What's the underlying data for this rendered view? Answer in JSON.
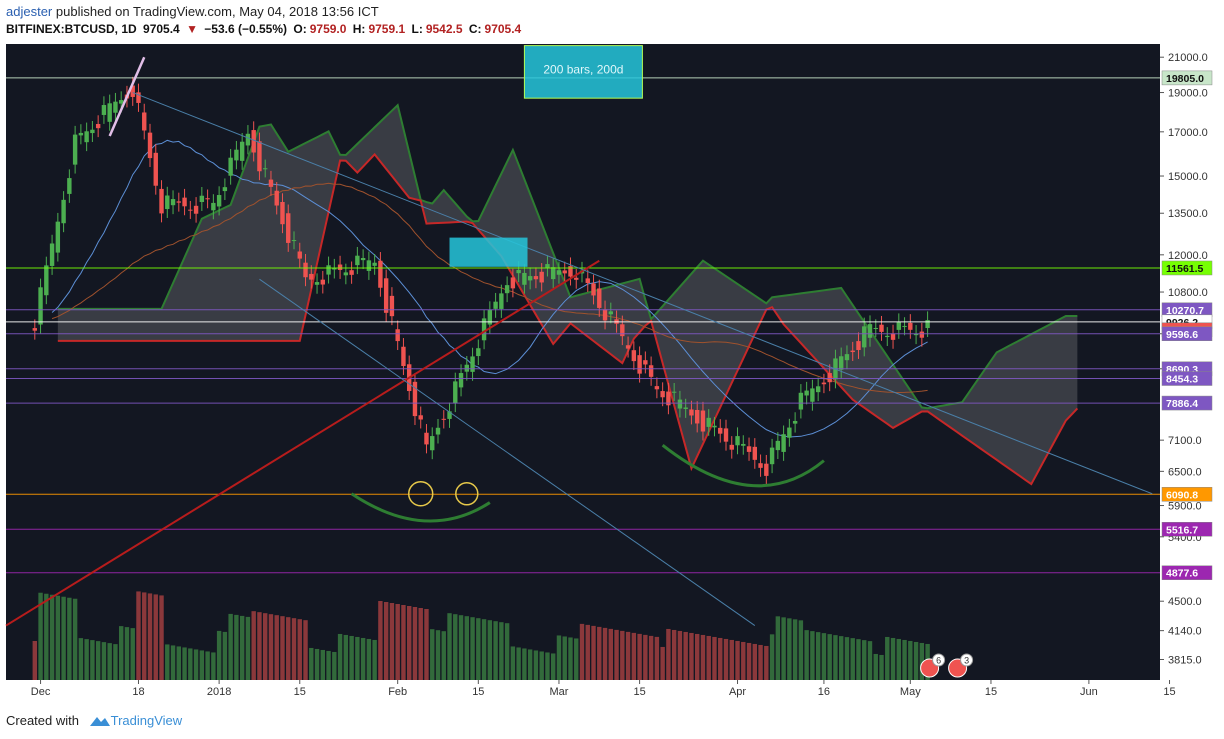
{
  "header": {
    "author": "adjester",
    "published": "published on TradingView.com, May 04, 2018 13:56 ICT",
    "symbol": "BITFINEX:BTCUSD, 1D",
    "last": "9705.4",
    "change": "−53.6 (−0.55%)",
    "open_label": "O:",
    "open": "9759.0",
    "high_label": "H:",
    "high": "9759.1",
    "low_label": "L:",
    "low": "9542.5",
    "close_label": "C:",
    "close": "9705.4"
  },
  "footer": {
    "created_with": "Created with",
    "brand": "TradingView"
  },
  "colors": {
    "background": "#131722",
    "up": "#26a69a",
    "up_body": "#4caf50",
    "down": "#ef5350",
    "cloud_green": "#2e7d32",
    "cloud_red": "#c62828",
    "level_green": "#7cfc00",
    "level_violet": "#9c27b0",
    "level_orange": "#ff9800",
    "cyan_box": "#26c6da"
  },
  "chart_data": {
    "type": "candlestick",
    "x_ticks": [
      "Dec",
      "18",
      "2018",
      "15",
      "Feb",
      "15",
      "Mar",
      "15",
      "Apr",
      "16",
      "May",
      "15",
      "Jun",
      "15"
    ],
    "y_ticks": [
      "21000.0",
      "19000.0",
      "17000.0",
      "15000.0",
      "13500.0",
      "12000.0",
      "10800.0",
      "9596.6",
      "8690.3",
      "7100.0",
      "6500.0",
      "5900.0",
      "5400.0",
      "4500.0",
      "4140.0",
      "3815.0"
    ],
    "y_range": [
      3600,
      21800
    ],
    "y_scale": "log",
    "price_labels": [
      {
        "value": "19805.0",
        "color": "#c8e6c9"
      },
      {
        "value": "11561.5",
        "color": "#76ff03"
      },
      {
        "value": "10270.7",
        "color": "#7e57c2"
      },
      {
        "value": "9926.2",
        "color": "#ffffff"
      },
      {
        "value": "9705.4",
        "color": "#ef5350"
      },
      {
        "value": "9596.6",
        "color": "#7e57c2"
      },
      {
        "value": "8690.3",
        "color": "#7e57c2"
      },
      {
        "value": "8454.3",
        "color": "#7e57c2"
      },
      {
        "value": "7886.4",
        "color": "#7e57c2"
      },
      {
        "value": "6090.8",
        "color": "#ff9800"
      },
      {
        "value": "5516.7",
        "color": "#9c27b0"
      },
      {
        "value": "4877.6",
        "color": "#9c27b0"
      }
    ],
    "horizontal_levels": [
      19805.0,
      11561.5,
      10270.7,
      9926.2,
      9596.6,
      8690.3,
      8454.3,
      7886.4,
      6090.8,
      5516.7,
      4877.6
    ],
    "annotation": "200 bars, 200d",
    "event_badges": [
      "6",
      "3"
    ],
    "close_series": [
      {
        "date": "2017-11-30",
        "close": 9900
      },
      {
        "date": "2017-12-07",
        "close": 16500
      },
      {
        "date": "2017-12-17",
        "close": 19300
      },
      {
        "date": "2017-12-22",
        "close": 13800
      },
      {
        "date": "2017-12-31",
        "close": 13900
      },
      {
        "date": "2018-01-06",
        "close": 17000
      },
      {
        "date": "2018-01-16",
        "close": 11200
      },
      {
        "date": "2018-01-28",
        "close": 11800
      },
      {
        "date": "2018-02-06",
        "close": 6900
      },
      {
        "date": "2018-02-20",
        "close": 11200
      },
      {
        "date": "2018-03-04",
        "close": 11500
      },
      {
        "date": "2018-03-18",
        "close": 8200
      },
      {
        "date": "2018-04-06",
        "close": 6600
      },
      {
        "date": "2018-04-12",
        "close": 7900
      },
      {
        "date": "2018-04-24",
        "close": 9700
      },
      {
        "date": "2018-05-04",
        "close": 9705.4
      }
    ]
  }
}
